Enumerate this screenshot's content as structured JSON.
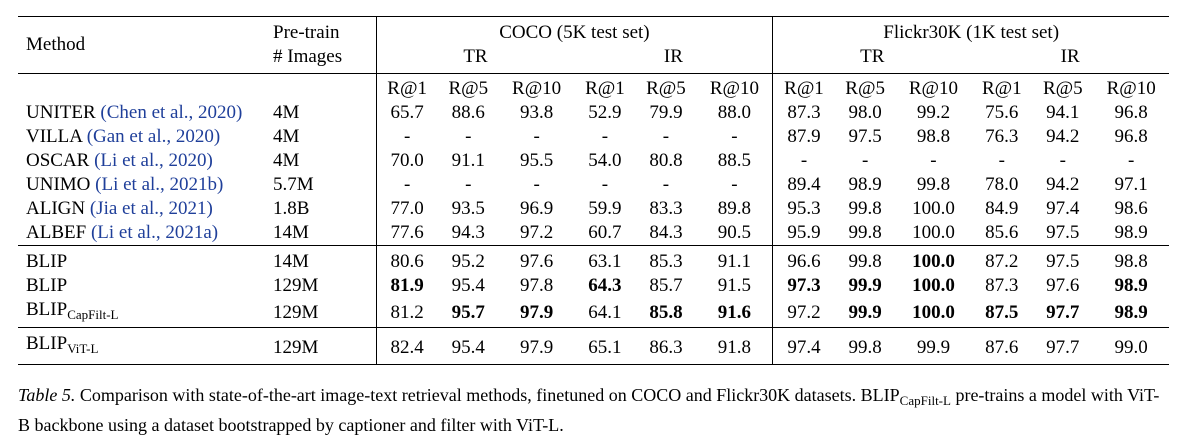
{
  "header": {
    "method": "Method",
    "pretrain_line1": "Pre-train",
    "pretrain_line2": "# Images",
    "coco": "COCO (5K test set)",
    "flickr": "Flickr30K (1K test set)",
    "tr": "TR",
    "ir": "IR",
    "metrics": [
      "R@1",
      "R@5",
      "R@10",
      "R@1",
      "R@5",
      "R@10",
      "R@1",
      "R@5",
      "R@10",
      "R@1",
      "R@5",
      "R@10"
    ]
  },
  "groups": [
    {
      "rows": [
        {
          "name": "UNITER",
          "cite": "(Chen et al., 2020)",
          "images": "4M",
          "values": [
            "65.7",
            "88.6",
            "93.8",
            "52.9",
            "79.9",
            "88.0",
            "87.3",
            "98.0",
            "99.2",
            "75.6",
            "94.1",
            "96.8"
          ]
        },
        {
          "name": "VILLA",
          "cite": "(Gan et al., 2020)",
          "images": "4M",
          "values": [
            "-",
            "-",
            "-",
            "-",
            "-",
            "-",
            "87.9",
            "97.5",
            "98.8",
            "76.3",
            "94.2",
            "96.8"
          ]
        },
        {
          "name": "OSCAR",
          "cite": "(Li et al., 2020)",
          "images": "4M",
          "values": [
            "70.0",
            "91.1",
            "95.5",
            "54.0",
            "80.8",
            "88.5",
            "-",
            "-",
            "-",
            "-",
            "-",
            "-"
          ]
        },
        {
          "name": "UNIMO",
          "cite": "(Li et al., 2021b)",
          "images": "5.7M",
          "values": [
            "-",
            "-",
            "-",
            "-",
            "-",
            "-",
            "89.4",
            "98.9",
            "99.8",
            "78.0",
            "94.2",
            "97.1"
          ]
        },
        {
          "name": "ALIGN",
          "cite": "(Jia et al., 2021)",
          "images": "1.8B",
          "values": [
            "77.0",
            "93.5",
            "96.9",
            "59.9",
            "83.3",
            "89.8",
            "95.3",
            "99.8",
            "100.0",
            "84.9",
            "97.4",
            "98.6"
          ]
        },
        {
          "name": "ALBEF",
          "cite": "(Li et al., 2021a)",
          "images": "14M",
          "values": [
            "77.6",
            "94.3",
            "97.2",
            "60.7",
            "84.3",
            "90.5",
            "95.9",
            "99.8",
            "100.0",
            "85.6",
            "97.5",
            "98.9"
          ]
        }
      ]
    },
    {
      "rows": [
        {
          "name": "BLIP",
          "sub": "",
          "images": "14M",
          "values": [
            "80.6",
            "95.2",
            "97.6",
            "63.1",
            "85.3",
            "91.1",
            "96.6",
            "99.8",
            "100.0",
            "87.2",
            "97.5",
            "98.8"
          ],
          "bold": [
            8
          ]
        },
        {
          "name": "BLIP",
          "sub": "",
          "images": "129M",
          "values": [
            "81.9",
            "95.4",
            "97.8",
            "64.3",
            "85.7",
            "91.5",
            "97.3",
            "99.9",
            "100.0",
            "87.3",
            "97.6",
            "98.9"
          ],
          "bold": [
            0,
            3,
            6,
            7,
            8,
            11
          ]
        },
        {
          "name": "BLIP",
          "sub": "CapFilt-L",
          "images": "129M",
          "values": [
            "81.2",
            "95.7",
            "97.9",
            "64.1",
            "85.8",
            "91.6",
            "97.2",
            "99.9",
            "100.0",
            "87.5",
            "97.7",
            "98.9"
          ],
          "bold": [
            1,
            2,
            4,
            5,
            7,
            8,
            9,
            10,
            11
          ]
        }
      ]
    },
    {
      "rows": [
        {
          "name": "BLIP",
          "sub": "ViT-L",
          "images": "129M",
          "values": [
            "82.4",
            "95.4",
            "97.9",
            "65.1",
            "86.3",
            "91.8",
            "97.4",
            "99.8",
            "99.9",
            "87.6",
            "97.7",
            "99.0"
          ],
          "bold": []
        }
      ]
    }
  ],
  "caption": {
    "label": "Table 5.",
    "text_before": "Comparison with state-of-the-art image-text retrieval methods, finetuned on COCO and Flickr30K datasets. BLIP",
    "sub": "CapFilt-L",
    "text_after": "pre-trains a model with ViT-B backbone using a dataset bootstrapped by captioner and filter with ViT-L."
  }
}
